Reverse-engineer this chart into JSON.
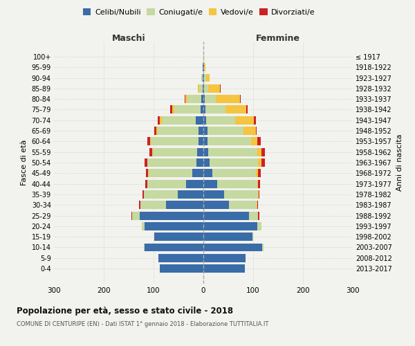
{
  "age_groups": [
    "0-4",
    "5-9",
    "10-14",
    "15-19",
    "20-24",
    "25-29",
    "30-34",
    "35-39",
    "40-44",
    "45-49",
    "50-54",
    "55-59",
    "60-64",
    "65-69",
    "70-74",
    "75-79",
    "80-84",
    "85-89",
    "90-94",
    "95-99",
    "100+"
  ],
  "birth_years": [
    "2013-2017",
    "2008-2012",
    "2003-2007",
    "1998-2002",
    "1993-1997",
    "1988-1992",
    "1983-1987",
    "1978-1982",
    "1973-1977",
    "1968-1972",
    "1963-1967",
    "1958-1962",
    "1953-1957",
    "1948-1952",
    "1943-1947",
    "1938-1942",
    "1933-1937",
    "1928-1932",
    "1923-1927",
    "1918-1922",
    "≤ 1917"
  ],
  "males": {
    "celibi": [
      88,
      90,
      118,
      98,
      118,
      128,
      75,
      52,
      35,
      22,
      14,
      12,
      10,
      10,
      15,
      6,
      4,
      2,
      1,
      1,
      0
    ],
    "coniugati": [
      0,
      0,
      2,
      1,
      5,
      15,
      52,
      68,
      78,
      88,
      98,
      90,
      95,
      82,
      68,
      52,
      28,
      7,
      3,
      1,
      0
    ],
    "vedovi": [
      0,
      0,
      0,
      0,
      0,
      0,
      0,
      0,
      0,
      1,
      1,
      1,
      2,
      2,
      4,
      5,
      4,
      2,
      0,
      0,
      0
    ],
    "divorziati": [
      0,
      0,
      0,
      0,
      0,
      1,
      2,
      2,
      4,
      4,
      5,
      5,
      5,
      4,
      5,
      3,
      2,
      0,
      0,
      0,
      0
    ]
  },
  "females": {
    "nubili": [
      84,
      85,
      118,
      98,
      108,
      92,
      52,
      42,
      28,
      18,
      12,
      10,
      8,
      8,
      6,
      4,
      3,
      2,
      1,
      1,
      0
    ],
    "coniugate": [
      0,
      0,
      3,
      2,
      8,
      18,
      55,
      68,
      80,
      88,
      98,
      98,
      88,
      72,
      58,
      40,
      22,
      8,
      4,
      1,
      0
    ],
    "vedove": [
      0,
      0,
      0,
      0,
      0,
      0,
      1,
      1,
      2,
      4,
      6,
      8,
      12,
      25,
      38,
      42,
      48,
      24,
      8,
      2,
      2
    ],
    "divorziate": [
      0,
      0,
      0,
      0,
      0,
      2,
      2,
      2,
      4,
      5,
      7,
      7,
      7,
      2,
      3,
      3,
      2,
      1,
      0,
      0,
      0
    ]
  },
  "colors": {
    "celibi": "#3a6ca8",
    "coniugati": "#c5d9a0",
    "vedovi": "#f5c440",
    "divorziati": "#cc2222"
  },
  "xlim": 300,
  "title": "Popolazione per età, sesso e stato civile - 2018",
  "subtitle": "COMUNE DI CENTURIPE (EN) - Dati ISTAT 1° gennaio 2018 - Elaborazione TUTTITALIA.IT",
  "ylabel_left": "Fasce di età",
  "ylabel_right": "Anni di nascita",
  "xlabel_maschi": "Maschi",
  "xlabel_femmine": "Femmine",
  "bg_color": "#f2f2ee",
  "grid_color": "#cccccc",
  "legend_labels": [
    "Celibi/Nubili",
    "Coniugati/e",
    "Vedovi/e",
    "Divorziati/e"
  ]
}
